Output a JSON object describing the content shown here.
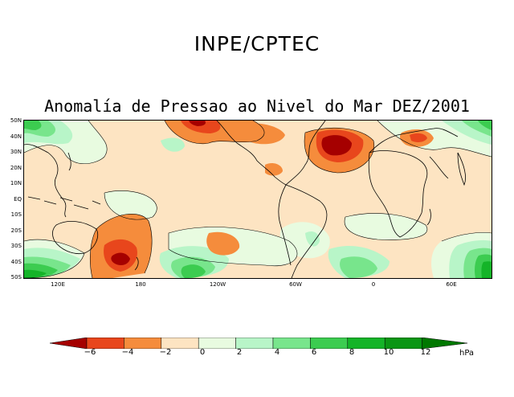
{
  "header": {
    "title": "INPE/CPTEC"
  },
  "map": {
    "title": "Anomalía de Pressao ao Nivel do Mar DEZ/2001",
    "lat_labels": [
      "50N",
      "40N",
      "30N",
      "20N",
      "10N",
      "EQ",
      "10S",
      "20S",
      "30S",
      "40S",
      "50S"
    ],
    "lon_labels": [
      "120E",
      "180",
      "120W",
      "60W",
      "0",
      "60E"
    ],
    "colors": {
      "neg6": "#a50000",
      "neg4": "#e8461c",
      "neg2": "#f58c3c",
      "zero_neg": "#fde4c2",
      "zero_pos": "#e8fbe0",
      "pos2": "#b8f5c8",
      "pos4": "#78e58c",
      "pos6": "#3ccc50",
      "pos8": "#14b428",
      "pos10": "#0a9614",
      "pos12": "#007800",
      "land_outline": "#000000"
    }
  },
  "colorbar": {
    "labels": [
      "−6",
      "−4",
      "−2",
      "0",
      "2",
      "4",
      "6",
      "8",
      "10",
      "12"
    ],
    "units": "hPa"
  }
}
